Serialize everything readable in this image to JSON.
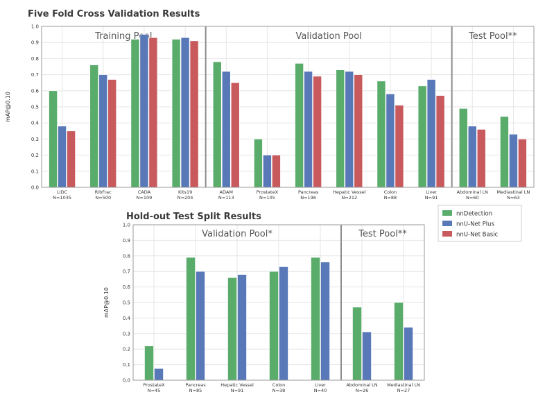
{
  "colors": {
    "nnDetection": "#5aac6b",
    "nnU-Net Plus": "#5878b8",
    "nnU-Net Basic": "#c85a5e",
    "grid": "#e6e6e6",
    "frame": "#999999",
    "separator": "#8c8c8c"
  },
  "legend": {
    "placement": "right-between-charts",
    "items": [
      "nnDetection",
      "nnU-Net Plus",
      "nnU-Net Basic"
    ]
  },
  "chart_data": [
    {
      "type": "bar",
      "title": "Five Fold Cross Validation Results",
      "ylabel": "mAP@0.10",
      "ylim": [
        0,
        1.0
      ],
      "yticks": [
        "0.0",
        "0.1",
        "0.2",
        "0.3",
        "0.4",
        "0.5",
        "0.6",
        "0.7",
        "0.8",
        "0.9",
        "1.0"
      ],
      "grid": true,
      "categories": [
        {
          "name": "LIDC",
          "n": "N=1035"
        },
        {
          "name": "RibFrac",
          "n": "N=500"
        },
        {
          "name": "CADA",
          "n": "N=109"
        },
        {
          "name": "Kits19",
          "n": "N=204"
        },
        {
          "name": "ADAM",
          "n": "N=113"
        },
        {
          "name": "ProstateX",
          "n": "N=105"
        },
        {
          "name": "Pancreas",
          "n": "N=196"
        },
        {
          "name": "Hepatic Vessel",
          "n": "N=212"
        },
        {
          "name": "Colon",
          "n": "N=88"
        },
        {
          "name": "Liver",
          "n": "N=91"
        },
        {
          "name": "Abdominal LN",
          "n": "N=60"
        },
        {
          "name": "Mediastinal LN",
          "n": "N=63"
        }
      ],
      "pools": [
        {
          "label": "Training Pool",
          "start": 0,
          "end": 3
        },
        {
          "label": "Validation Pool",
          "start": 4,
          "end": 9
        },
        {
          "label": "Test Pool**",
          "start": 10,
          "end": 11
        }
      ],
      "series": [
        {
          "name": "nnDetection",
          "values": [
            0.6,
            0.76,
            0.92,
            0.92,
            0.78,
            0.3,
            0.77,
            0.73,
            0.66,
            0.63,
            0.49,
            0.44
          ]
        },
        {
          "name": "nnU-Net Plus",
          "values": [
            0.38,
            0.7,
            0.95,
            0.93,
            0.72,
            0.2,
            0.72,
            0.72,
            0.58,
            0.67,
            0.38,
            0.33
          ]
        },
        {
          "name": "nnU-Net Basic",
          "values": [
            0.35,
            0.67,
            0.93,
            0.91,
            0.65,
            0.2,
            0.69,
            0.7,
            0.51,
            0.57,
            0.36,
            0.3
          ]
        }
      ]
    },
    {
      "type": "bar",
      "title": "Hold-out Test Split Results",
      "ylabel": "mAP@0.10",
      "ylim": [
        0,
        1.0
      ],
      "yticks": [
        "0.0",
        "0.1",
        "0.2",
        "0.3",
        "0.4",
        "0.5",
        "0.6",
        "0.7",
        "0.8",
        "0.9",
        "1.0"
      ],
      "grid": true,
      "categories": [
        {
          "name": "ProstateX",
          "n": "N=45"
        },
        {
          "name": "Pancreas",
          "n": "N=85"
        },
        {
          "name": "Hepatic Vessel",
          "n": "N=91"
        },
        {
          "name": "Colon",
          "n": "N=38"
        },
        {
          "name": "Liver",
          "n": "N=40"
        },
        {
          "name": "Abdominal LN",
          "n": "N=26"
        },
        {
          "name": "Mediastinal LN",
          "n": "N=27"
        }
      ],
      "pools": [
        {
          "label": "Validation Pool*",
          "start": 0,
          "end": 4
        },
        {
          "label": "Test Pool**",
          "start": 5,
          "end": 6
        }
      ],
      "series": [
        {
          "name": "nnDetection",
          "values": [
            0.22,
            0.79,
            0.66,
            0.7,
            0.79,
            0.47,
            0.5
          ]
        },
        {
          "name": "nnU-Net Plus",
          "values": [
            0.075,
            0.7,
            0.68,
            0.73,
            0.76,
            0.31,
            0.34
          ]
        }
      ]
    }
  ]
}
